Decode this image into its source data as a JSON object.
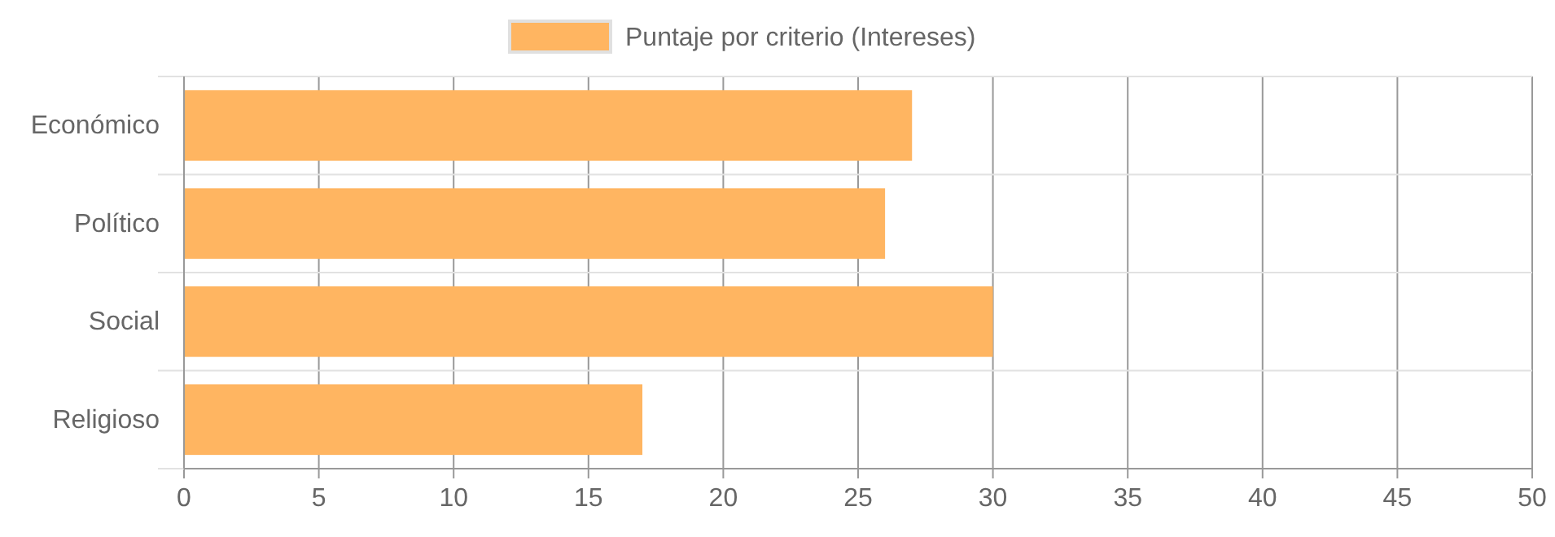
{
  "chart_data": {
    "type": "bar",
    "orientation": "horizontal",
    "categories": [
      "Económico",
      "Político",
      "Social",
      "Religioso"
    ],
    "series": [
      {
        "name": "Puntaje por criterio (Intereses)",
        "color": "#ffb561",
        "values": [
          27,
          26,
          30,
          17
        ]
      }
    ],
    "xlim": [
      0,
      50
    ],
    "xticks": [
      0,
      5,
      10,
      15,
      20,
      25,
      30,
      35,
      40,
      45,
      50
    ],
    "grid": true,
    "legend": "top"
  }
}
